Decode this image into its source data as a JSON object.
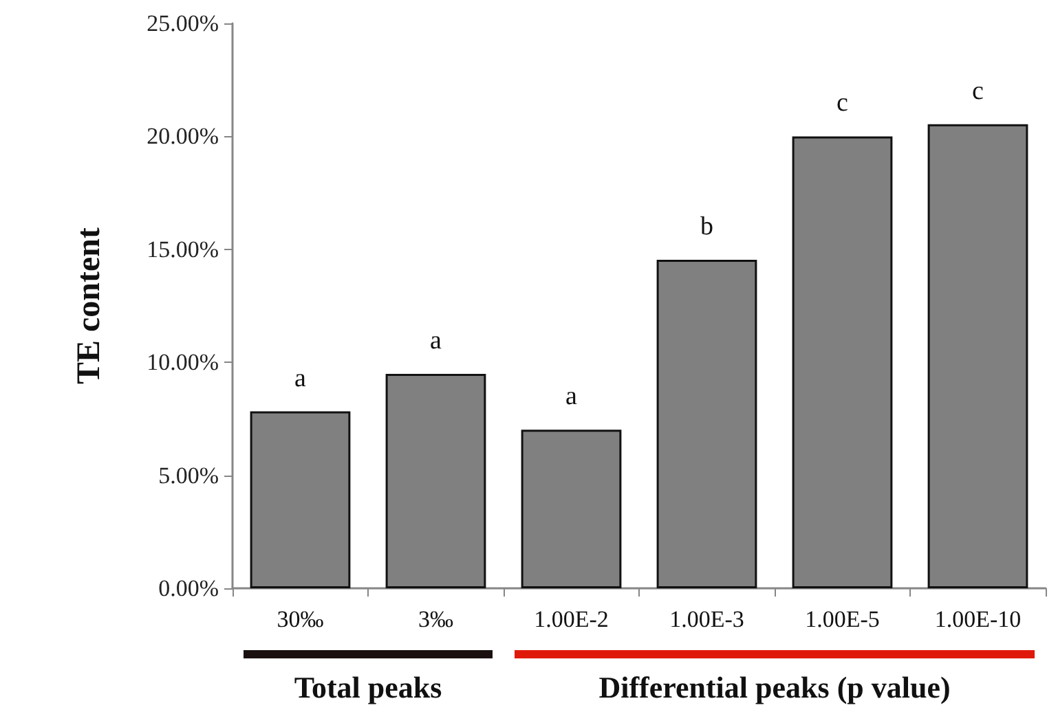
{
  "chart_data": {
    "type": "bar",
    "ylabel": "TE content",
    "categories": [
      "30‰",
      "3‰",
      "1.00E-2",
      "1.00E-3",
      "1.00E-5",
      "1.00E-10"
    ],
    "values": [
      7.83,
      9.49,
      7.02,
      14.54,
      20.0,
      20.54
    ],
    "color": "#808080",
    "ylim": [
      0,
      25
    ],
    "yticks": [
      {
        "value": 0,
        "label": "0.00%"
      },
      {
        "value": 5,
        "label": "5.00%"
      },
      {
        "value": 10,
        "label": "10.00%"
      },
      {
        "value": 15,
        "label": "15.00%"
      },
      {
        "value": 20,
        "label": "20.00%"
      },
      {
        "value": 25,
        "label": "25.00%"
      }
    ],
    "grid": false,
    "annotations": [
      "a",
      "a",
      "a",
      "b",
      "c",
      "c",
      "Total peaks",
      "Differential peaks (p value)"
    ]
  }
}
